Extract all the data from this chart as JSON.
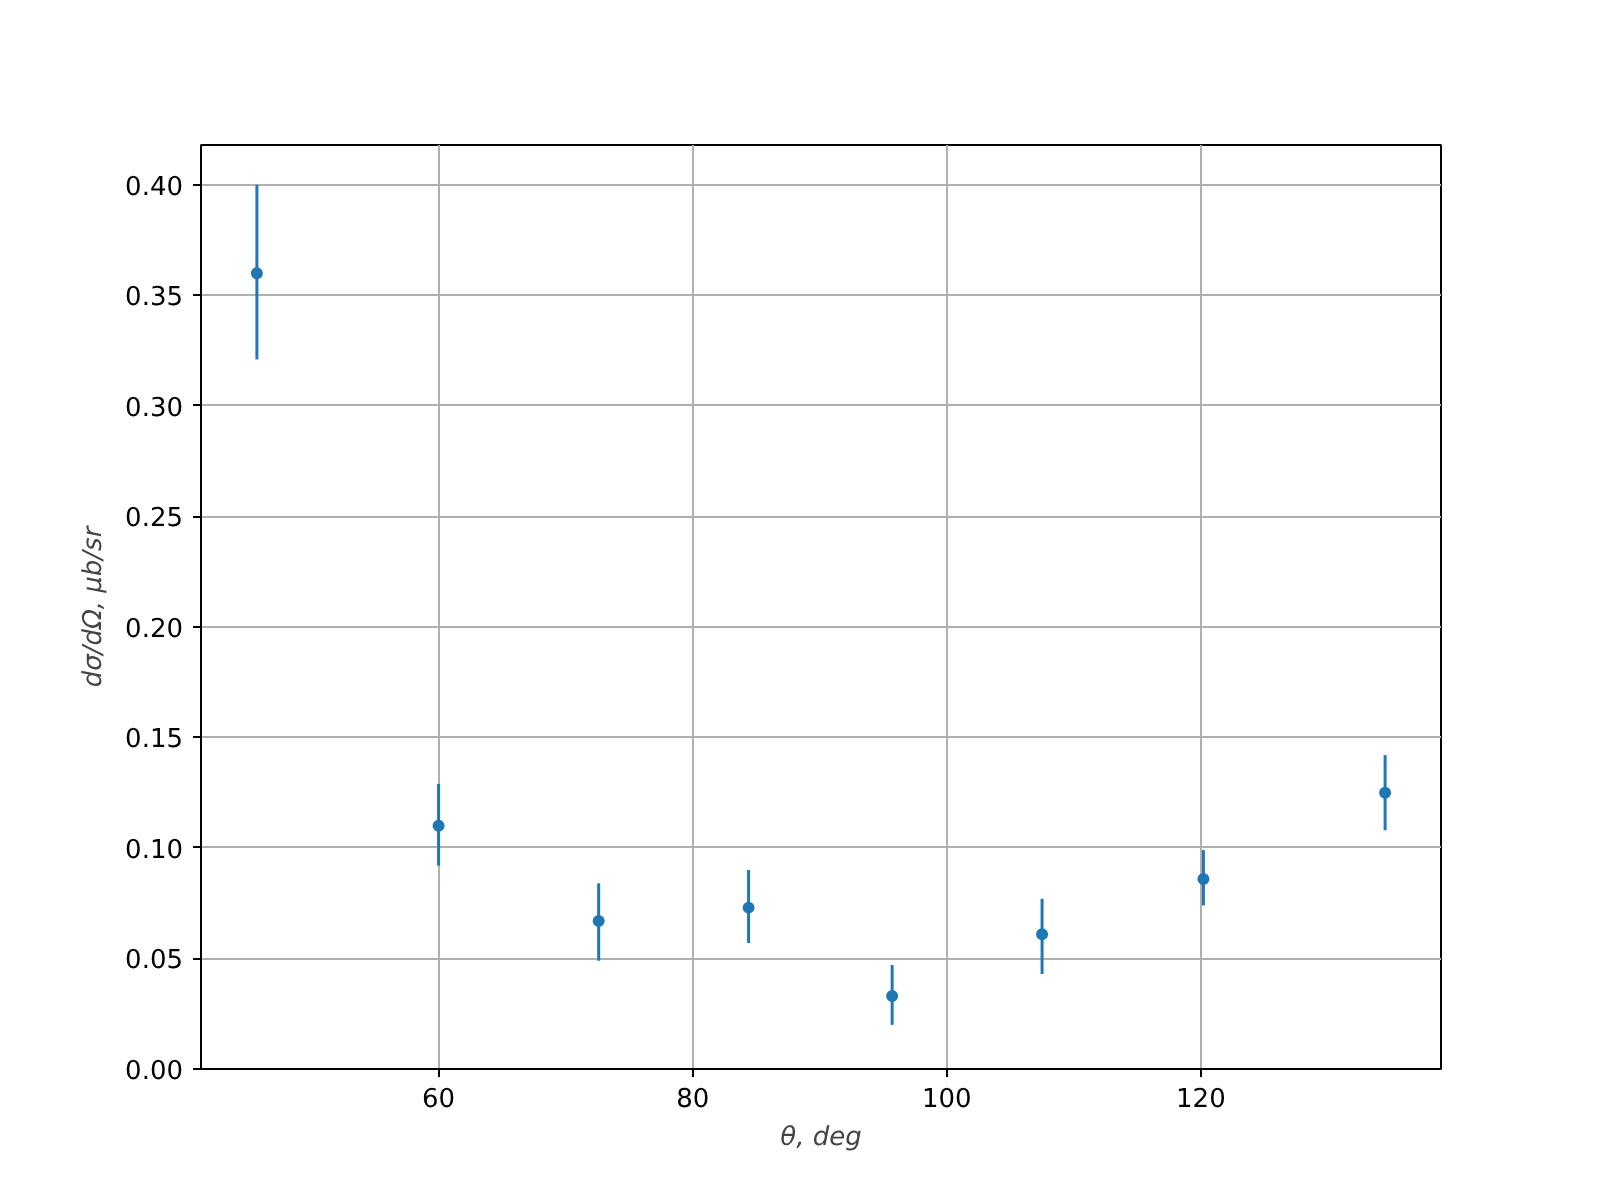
{
  "chart_data": {
    "type": "scatter",
    "xlabel": "θ, deg",
    "ylabel": "dσ/dΩ, μb/sr",
    "x": [
      45.7,
      60,
      72.6,
      84.4,
      95.7,
      107.5,
      120.2,
      134.5
    ],
    "series": [
      {
        "color": "#1f77b4",
        "values": [
          0.36,
          0.11,
          0.067,
          0.073,
          0.033,
          0.061,
          0.086,
          0.125
        ],
        "errors": [
          [
            0.321,
            0.4
          ],
          [
            0.092,
            0.129
          ],
          [
            0.049,
            0.084
          ],
          [
            0.057,
            0.09
          ],
          [
            0.02,
            0.047
          ],
          [
            0.043,
            0.077
          ],
          [
            0.074,
            0.099
          ],
          [
            0.108,
            0.142
          ]
        ]
      }
    ],
    "xlim": [
      41.3,
      138.9
    ],
    "ylim": [
      0,
      0.418
    ],
    "xticks": [
      60,
      80,
      100,
      120
    ],
    "yticks": [
      {
        "value": 0,
        "label": "0.00"
      },
      {
        "value": 0.05,
        "label": "0.05"
      },
      {
        "value": 0.1,
        "label": "0.10"
      },
      {
        "value": 0.15,
        "label": "0.15"
      },
      {
        "value": 0.2,
        "label": "0.20"
      },
      {
        "value": 0.25,
        "label": "0.25"
      },
      {
        "value": 0.3,
        "label": "0.30"
      },
      {
        "value": 0.35,
        "label": "0.35"
      },
      {
        "value": 0.4,
        "label": "0.40"
      }
    ],
    "grid": true,
    "marker": "circle"
  }
}
